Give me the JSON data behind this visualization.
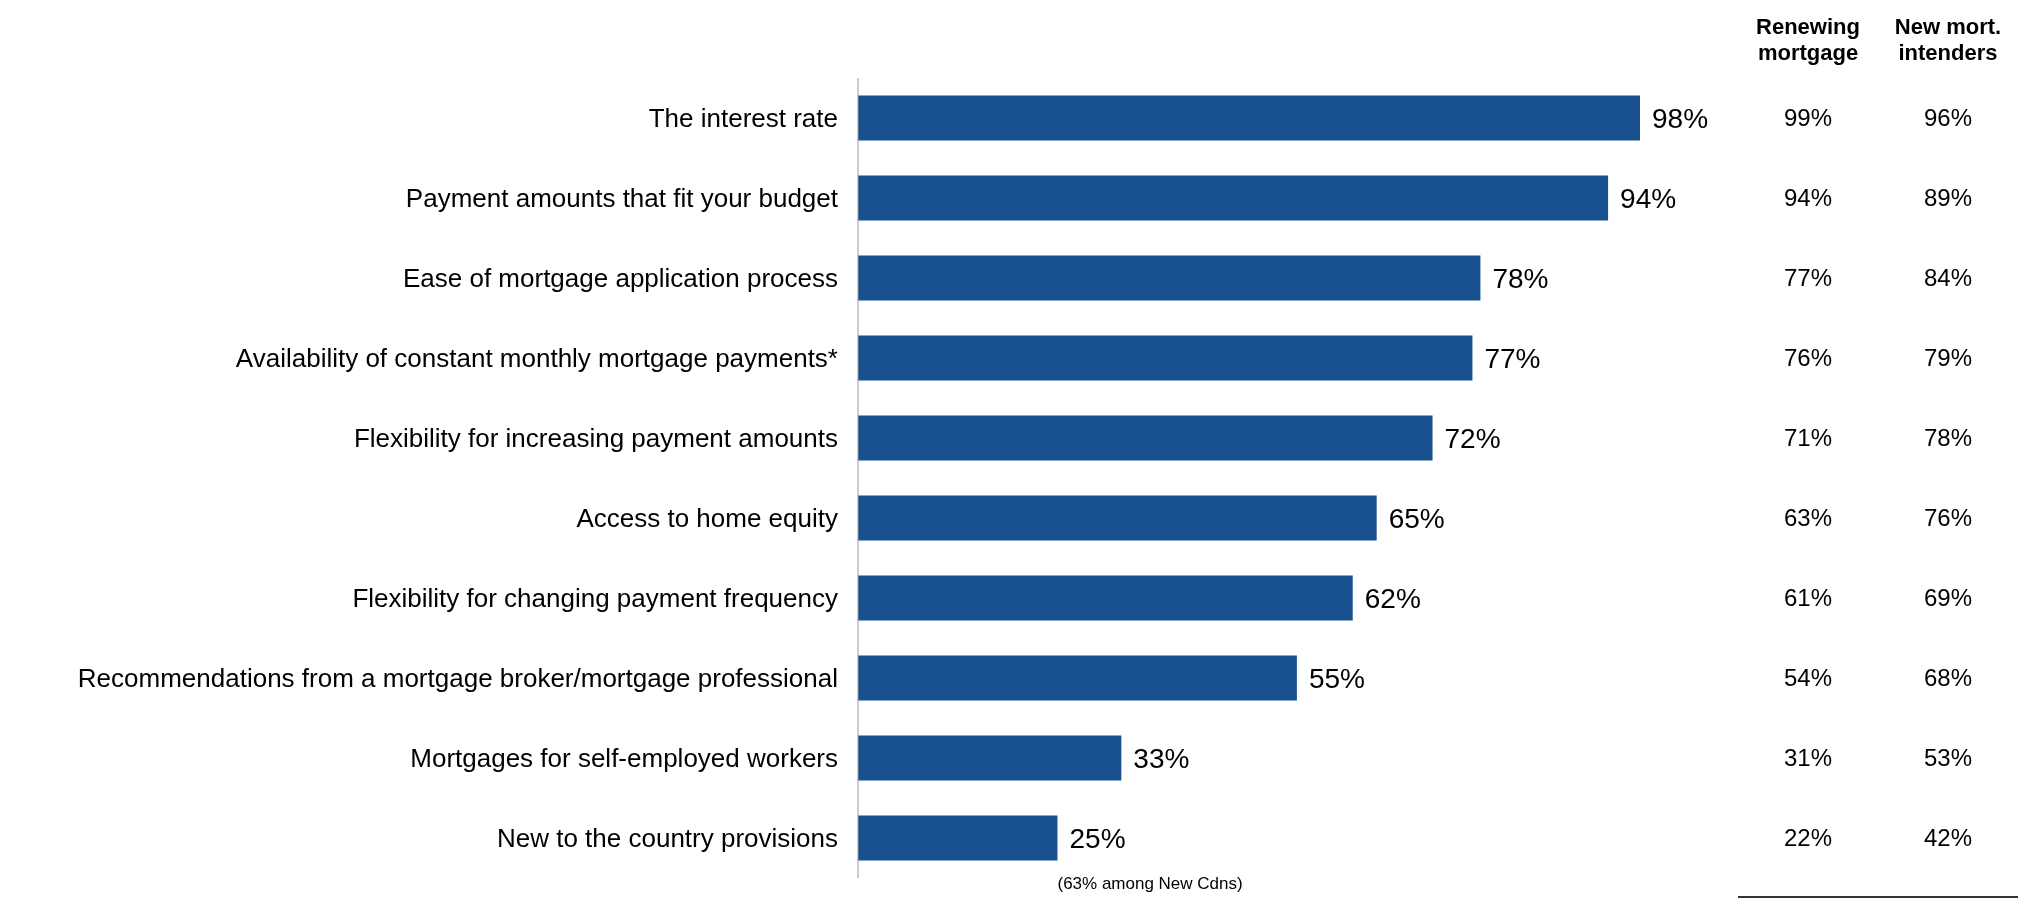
{
  "chart_data": {
    "type": "bar",
    "orientation": "horizontal",
    "categories": [
      "The interest rate",
      "Payment amounts that fit your budget",
      "Ease of mortgage application process",
      "Availability of constant monthly mortgage payments*",
      "Flexibility for increasing payment amounts",
      "Access to home equity",
      "Flexibility for changing payment frequency",
      "Recommendations from a mortgage broker/mortgage professional",
      "Mortgages for self-employed workers",
      "New to the country provisions"
    ],
    "values": [
      98,
      94,
      78,
      77,
      72,
      65,
      62,
      55,
      33,
      25
    ],
    "value_labels": [
      "98%",
      "94%",
      "78%",
      "77%",
      "72%",
      "65%",
      "62%",
      "55%",
      "33%",
      "25%"
    ],
    "color": "#174f8f",
    "tick_labels": "y",
    "annotations": [
      {
        "text": "(63% among New Cdns)",
        "x": 25,
        "y": "New to the country provisions"
      },
      "Renewing mortgage",
      "New mort. intenders",
      "99%",
      "96%",
      "94%",
      "89%",
      "77%",
      "84%",
      "76%",
      "79%",
      "71%",
      "78%",
      "63%",
      "76%",
      "61%",
      "69%",
      "54%",
      "68%",
      "31%",
      "53%",
      "22%",
      "42%"
    ]
  }
}
